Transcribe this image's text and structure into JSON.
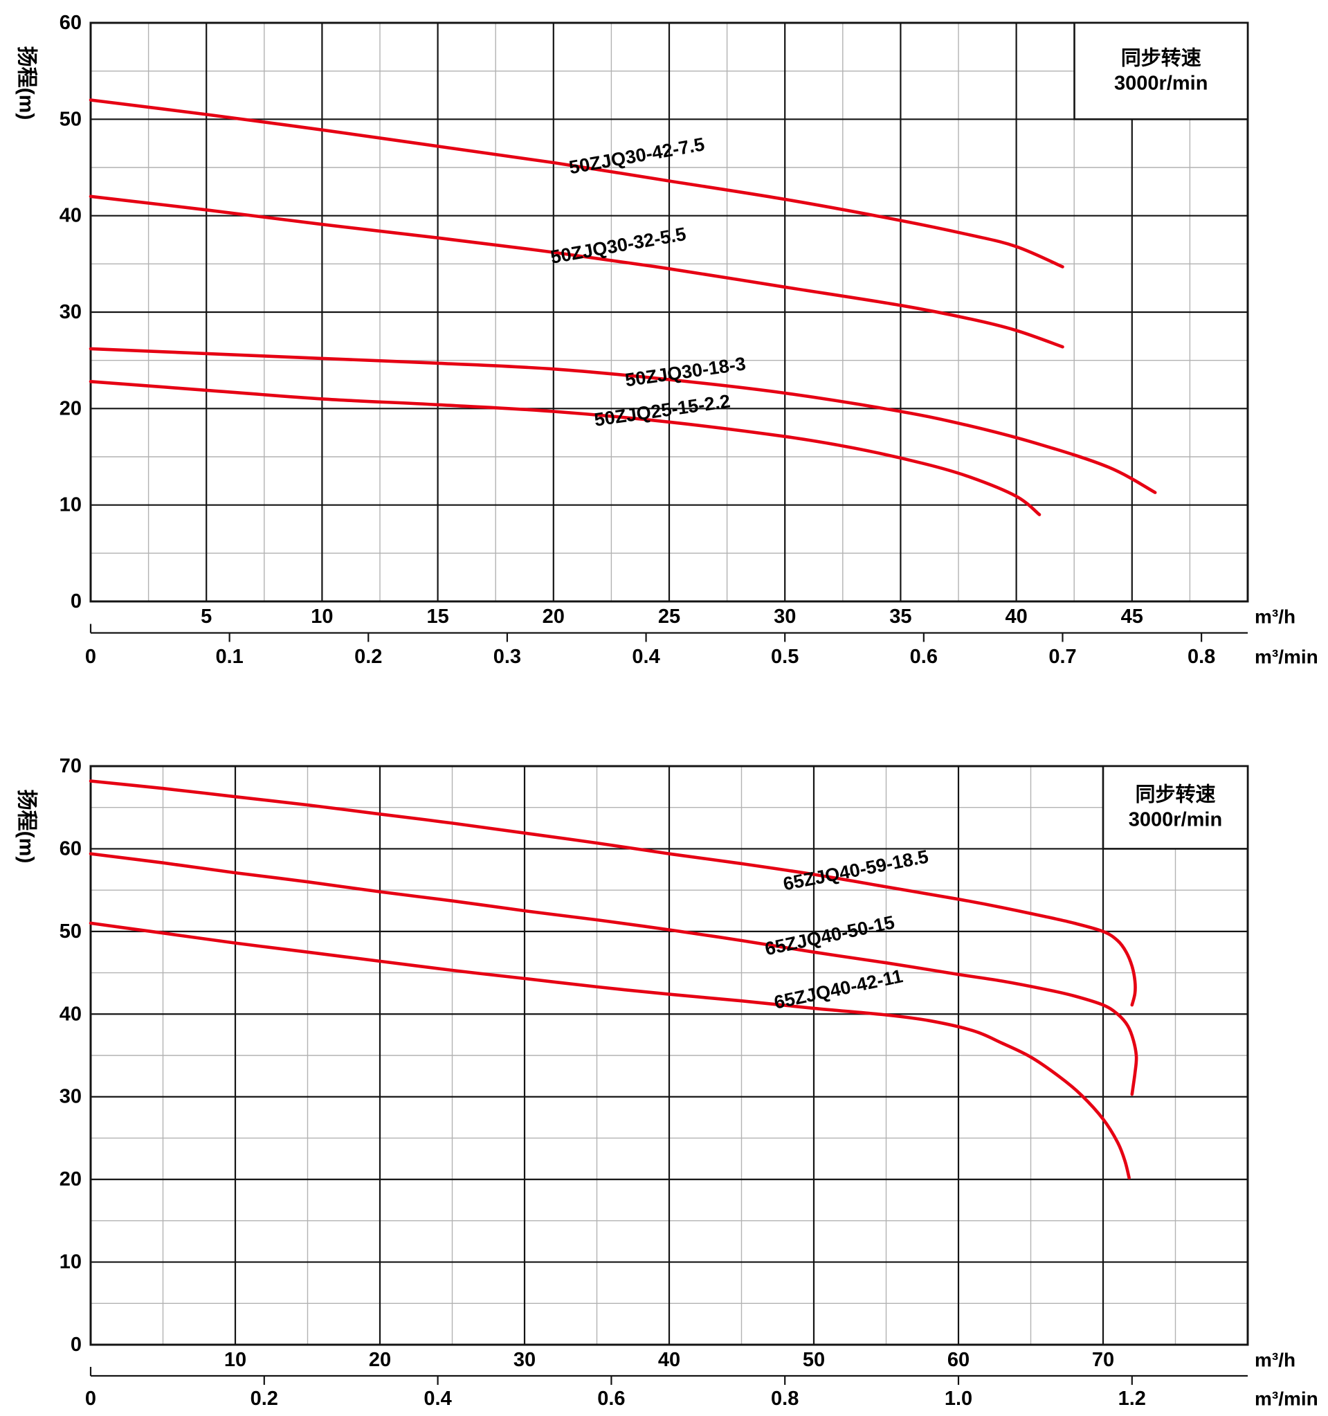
{
  "colors": {
    "curve_red": "#e60013",
    "accent_blue": "#1a6cab",
    "grid_major": "#141414",
    "grid_minor": "#b2b2b2",
    "text": "#000000",
    "background": "#ffffff"
  },
  "chart_data": [
    {
      "type": "line",
      "title": "",
      "ylabel": "扬程(m)",
      "speed_box": {
        "line1": "同步转速",
        "line2": "3000r/min"
      },
      "y_axis": {
        "min": 0,
        "max": 60,
        "major_step": 10,
        "minor_step": 5,
        "tick_labels": [
          "0",
          "10",
          "20",
          "30",
          "40",
          "50",
          "60"
        ],
        "tick_values": [
          0,
          10,
          20,
          30,
          40,
          50,
          60
        ]
      },
      "x_axis": {
        "unit": "m³/h",
        "min": 0,
        "max": 50,
        "major_step": 5,
        "minor_step": 2.5,
        "tick_labels": [
          "5",
          "10",
          "15",
          "20",
          "25",
          "30",
          "35",
          "40",
          "45"
        ],
        "tick_values": [
          5,
          10,
          15,
          20,
          25,
          30,
          35,
          40,
          45
        ]
      },
      "x_axis_secondary": {
        "unit": "m³/min",
        "scale_to_primary": 60,
        "tick_labels": [
          "0",
          "0.1",
          "0.2",
          "0.3",
          "0.4",
          "0.5",
          "0.6",
          "0.7",
          "0.8"
        ],
        "tick_values": [
          0,
          0.1,
          0.2,
          0.3,
          0.4,
          0.5,
          0.6,
          0.7,
          0.8
        ]
      },
      "grid": true,
      "series": [
        {
          "name": "50ZJQ30-42-7.5",
          "points": [
            [
              0,
              52
            ],
            [
              5,
              50.5
            ],
            [
              10,
              48.9
            ],
            [
              15,
              47.2
            ],
            [
              20,
              45.5
            ],
            [
              25,
              43.6
            ],
            [
              30,
              41.7
            ],
            [
              35,
              39.5
            ],
            [
              38,
              38
            ],
            [
              40,
              36.8
            ],
            [
              42,
              34.7
            ]
          ],
          "label": {
            "x": 23.6,
            "y": 46.2,
            "rot": -10
          }
        },
        {
          "name": "50ZJQ30-32-5.5",
          "points": [
            [
              0,
              42
            ],
            [
              5,
              40.6
            ],
            [
              10,
              39.1
            ],
            [
              15,
              37.7
            ],
            [
              20,
              36.2
            ],
            [
              25,
              34.5
            ],
            [
              30,
              32.6
            ],
            [
              35,
              30.7
            ],
            [
              38,
              29.3
            ],
            [
              40,
              28.1
            ],
            [
              42,
              26.4
            ]
          ],
          "label": {
            "x": 22.8,
            "y": 36.9,
            "rot": -10
          }
        },
        {
          "name": "50ZJQ30-18-3",
          "points": [
            [
              0,
              26.2
            ],
            [
              5,
              25.7
            ],
            [
              10,
              25.2
            ],
            [
              15,
              24.7
            ],
            [
              20,
              24.1
            ],
            [
              25,
              23
            ],
            [
              30,
              21.6
            ],
            [
              35,
              19.7
            ],
            [
              38,
              18.2
            ],
            [
              41,
              16.3
            ],
            [
              44,
              13.9
            ],
            [
              46,
              11.3
            ]
          ],
          "label": {
            "x": 25.7,
            "y": 23.8,
            "rot": -8
          }
        },
        {
          "name": "50ZJQ25-15-2.2",
          "points": [
            [
              0,
              22.8
            ],
            [
              5,
              21.9
            ],
            [
              10,
              21
            ],
            [
              15,
              20.4
            ],
            [
              20,
              19.7
            ],
            [
              25,
              18.6
            ],
            [
              30,
              17.1
            ],
            [
              33,
              15.9
            ],
            [
              36,
              14.3
            ],
            [
              38,
              12.9
            ],
            [
              40,
              10.9
            ],
            [
              41,
              9
            ]
          ],
          "label": {
            "x": 24.7,
            "y": 19.8,
            "rot": -8
          }
        }
      ]
    },
    {
      "type": "line",
      "title": "",
      "ylabel": "扬程(m)",
      "speed_box": {
        "line1": "同步转速",
        "line2": "3000r/min"
      },
      "y_axis": {
        "min": 0,
        "max": 70,
        "major_step": 10,
        "minor_step": 5,
        "tick_labels": [
          "0",
          "10",
          "20",
          "30",
          "40",
          "50",
          "60",
          "70"
        ],
        "tick_values": [
          0,
          10,
          20,
          30,
          40,
          50,
          60,
          70
        ]
      },
      "x_axis": {
        "unit": "m³/h",
        "min": 0,
        "max": 80,
        "major_step": 10,
        "minor_step": 5,
        "tick_labels": [
          "10",
          "20",
          "30",
          "40",
          "50",
          "60",
          "70"
        ],
        "tick_values": [
          10,
          20,
          30,
          40,
          50,
          60,
          70
        ]
      },
      "x_axis_secondary": {
        "unit": "m³/min",
        "scale_to_primary": 60,
        "tick_labels": [
          "0",
          "0.2",
          "0.4",
          "0.6",
          "0.8",
          "1.0",
          "1.2"
        ],
        "tick_values": [
          0,
          0.2,
          0.4,
          0.6,
          0.8,
          1.0,
          1.2
        ]
      },
      "grid": true,
      "series": [
        {
          "name": "65ZJQ40-59-18.5",
          "points": [
            [
              0,
              68.2
            ],
            [
              5,
              67.3
            ],
            [
              10,
              66.3
            ],
            [
              15,
              65.3
            ],
            [
              20,
              64.2
            ],
            [
              25,
              63.1
            ],
            [
              30,
              61.9
            ],
            [
              35,
              60.7
            ],
            [
              40,
              59.4
            ],
            [
              45,
              58.2
            ],
            [
              50,
              56.9
            ],
            [
              55,
              55.4
            ],
            [
              60,
              53.9
            ],
            [
              63,
              52.9
            ],
            [
              66,
              51.8
            ],
            [
              68,
              51
            ],
            [
              70,
              50
            ],
            [
              71,
              48.9
            ],
            [
              71.6,
              47.5
            ],
            [
              72,
              45.8
            ],
            [
              72.2,
              44
            ],
            [
              72.2,
              42.5
            ],
            [
              72,
              41.1
            ]
          ],
          "label": {
            "x": 52.9,
            "y": 57.4,
            "rot": -11
          }
        },
        {
          "name": "65ZJQ40-50-15",
          "points": [
            [
              0,
              59.4
            ],
            [
              5,
              58.3
            ],
            [
              10,
              57.1
            ],
            [
              15,
              56
            ],
            [
              20,
              54.8
            ],
            [
              25,
              53.7
            ],
            [
              30,
              52.5
            ],
            [
              35,
              51.4
            ],
            [
              40,
              50.2
            ],
            [
              45,
              48.9
            ],
            [
              50,
              47.5
            ],
            [
              55,
              46.2
            ],
            [
              60,
              44.8
            ],
            [
              63,
              44
            ],
            [
              66,
              43
            ],
            [
              68,
              42.2
            ],
            [
              70,
              41.1
            ],
            [
              71,
              40
            ],
            [
              71.7,
              38.6
            ],
            [
              72.1,
              36.8
            ],
            [
              72.3,
              34.8
            ],
            [
              72.2,
              32.8
            ],
            [
              72,
              30.3
            ]
          ],
          "label": {
            "x": 51.1,
            "y": 49.5,
            "rot": -12
          }
        },
        {
          "name": "65ZJQ40-42-11",
          "points": [
            [
              0,
              51
            ],
            [
              5,
              49.8
            ],
            [
              10,
              48.6
            ],
            [
              15,
              47.5
            ],
            [
              20,
              46.4
            ],
            [
              25,
              45.3
            ],
            [
              30,
              44.3
            ],
            [
              35,
              43.3
            ],
            [
              40,
              42.4
            ],
            [
              45,
              41.6
            ],
            [
              50,
              40.7
            ],
            [
              55,
              39.9
            ],
            [
              58,
              39.2
            ],
            [
              61,
              38
            ],
            [
              63,
              36.5
            ],
            [
              65,
              34.8
            ],
            [
              67,
              32.4
            ],
            [
              68.5,
              30.2
            ],
            [
              70,
              27.3
            ],
            [
              71,
              24.5
            ],
            [
              71.5,
              22.3
            ],
            [
              71.8,
              20.2
            ]
          ],
          "label": {
            "x": 51.7,
            "y": 43.0,
            "rot": -12
          }
        }
      ]
    }
  ]
}
